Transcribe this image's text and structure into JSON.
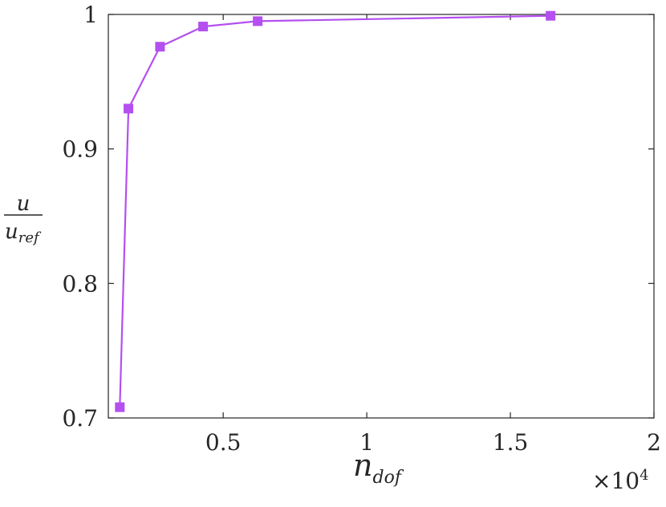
{
  "chart_data": {
    "type": "line",
    "title": "",
    "xlabel": {
      "main": "n",
      "sub": "dof"
    },
    "ylabel": {
      "numerator": "u",
      "denominator": "u",
      "denominator_sub": "ref"
    },
    "x_multiplier": {
      "prefix": "×10",
      "exponent": "4"
    },
    "xlim": [
      0.1,
      2.0
    ],
    "ylim": [
      0.7,
      1.0
    ],
    "xticks": [
      0.5,
      1,
      1.5,
      2
    ],
    "xtick_labels": [
      "0.5",
      "1",
      "1.5",
      "2"
    ],
    "yticks": [
      0.7,
      0.8,
      0.9,
      1.0
    ],
    "ytick_labels": [
      "0.7",
      "0.8",
      "0.9",
      "1"
    ],
    "grid": false,
    "legend": "none",
    "series": [
      {
        "color": "#b44ff0",
        "marker": "square",
        "x": [
          0.14,
          0.17,
          0.28,
          0.43,
          0.62,
          1.64
        ],
        "y": [
          0.708,
          0.93,
          0.976,
          0.991,
          0.995,
          0.999
        ]
      }
    ]
  }
}
